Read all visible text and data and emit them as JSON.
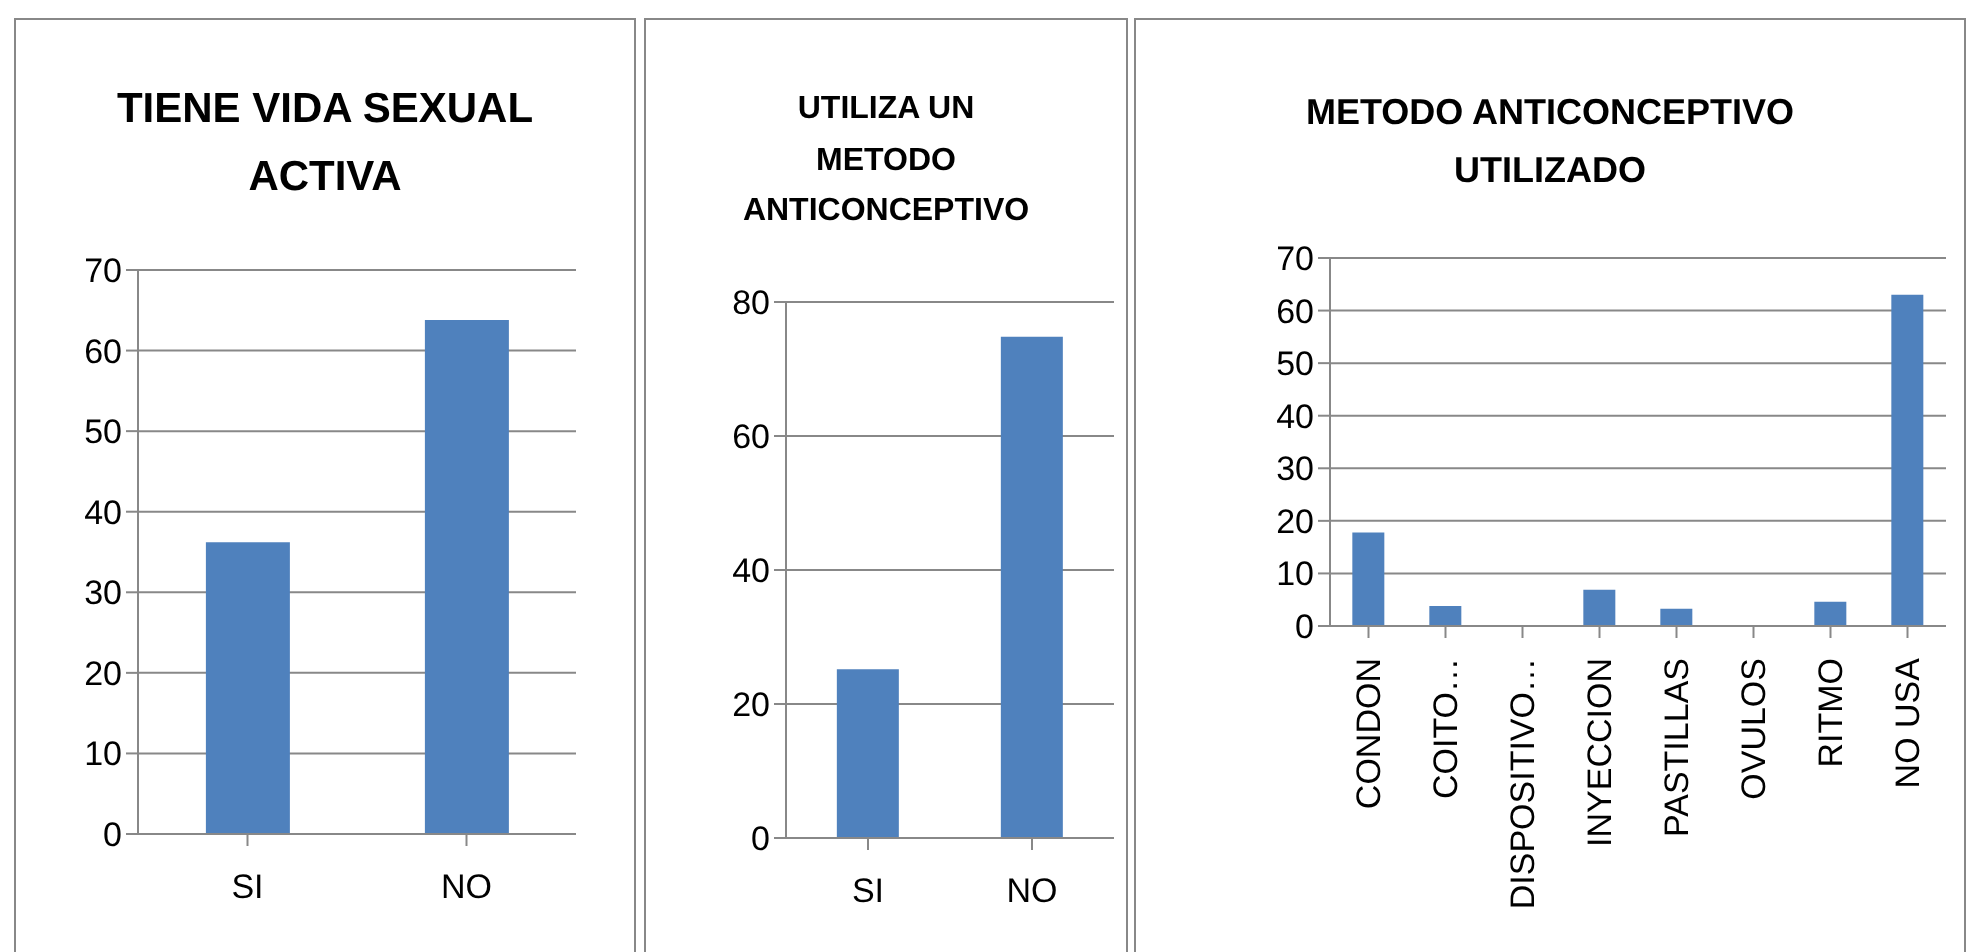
{
  "chart_data": [
    {
      "type": "bar",
      "title": "TIENE VIDA SEXUAL ACTIVA",
      "categories": [
        "SI",
        "NO"
      ],
      "values": [
        36.2,
        63.8
      ],
      "color": "#4f81bd",
      "ylim": [
        0,
        70
      ],
      "yticks": [
        0,
        10,
        20,
        30,
        40,
        50,
        60,
        70
      ],
      "grid": "y",
      "legend": false
    },
    {
      "type": "bar",
      "title": "UTILIZA UN METODO ANTICONCEPTIVO",
      "categories": [
        "SI",
        "NO"
      ],
      "values": [
        25.2,
        74.8
      ],
      "color": "#4f81bd",
      "ylim": [
        0,
        80
      ],
      "yticks": [
        0,
        20,
        40,
        60,
        80
      ],
      "grid": "y",
      "legend": false
    },
    {
      "type": "bar",
      "title": "METODO ANTICONCEPTIVO UTILIZADO",
      "categories": [
        "CONDON",
        "COITO…",
        "DISPOSITIVO…",
        "INYECCION",
        "PASTILLAS",
        "OVULOS",
        "RITMO",
        "NO USA"
      ],
      "values": [
        17.8,
        3.8,
        0,
        6.9,
        3.3,
        0,
        4.6,
        63.0
      ],
      "color": "#4f81bd",
      "ylim": [
        0,
        70
      ],
      "yticks": [
        0,
        10,
        20,
        30,
        40,
        50,
        60,
        70
      ],
      "grid": "y",
      "legend": false
    }
  ]
}
